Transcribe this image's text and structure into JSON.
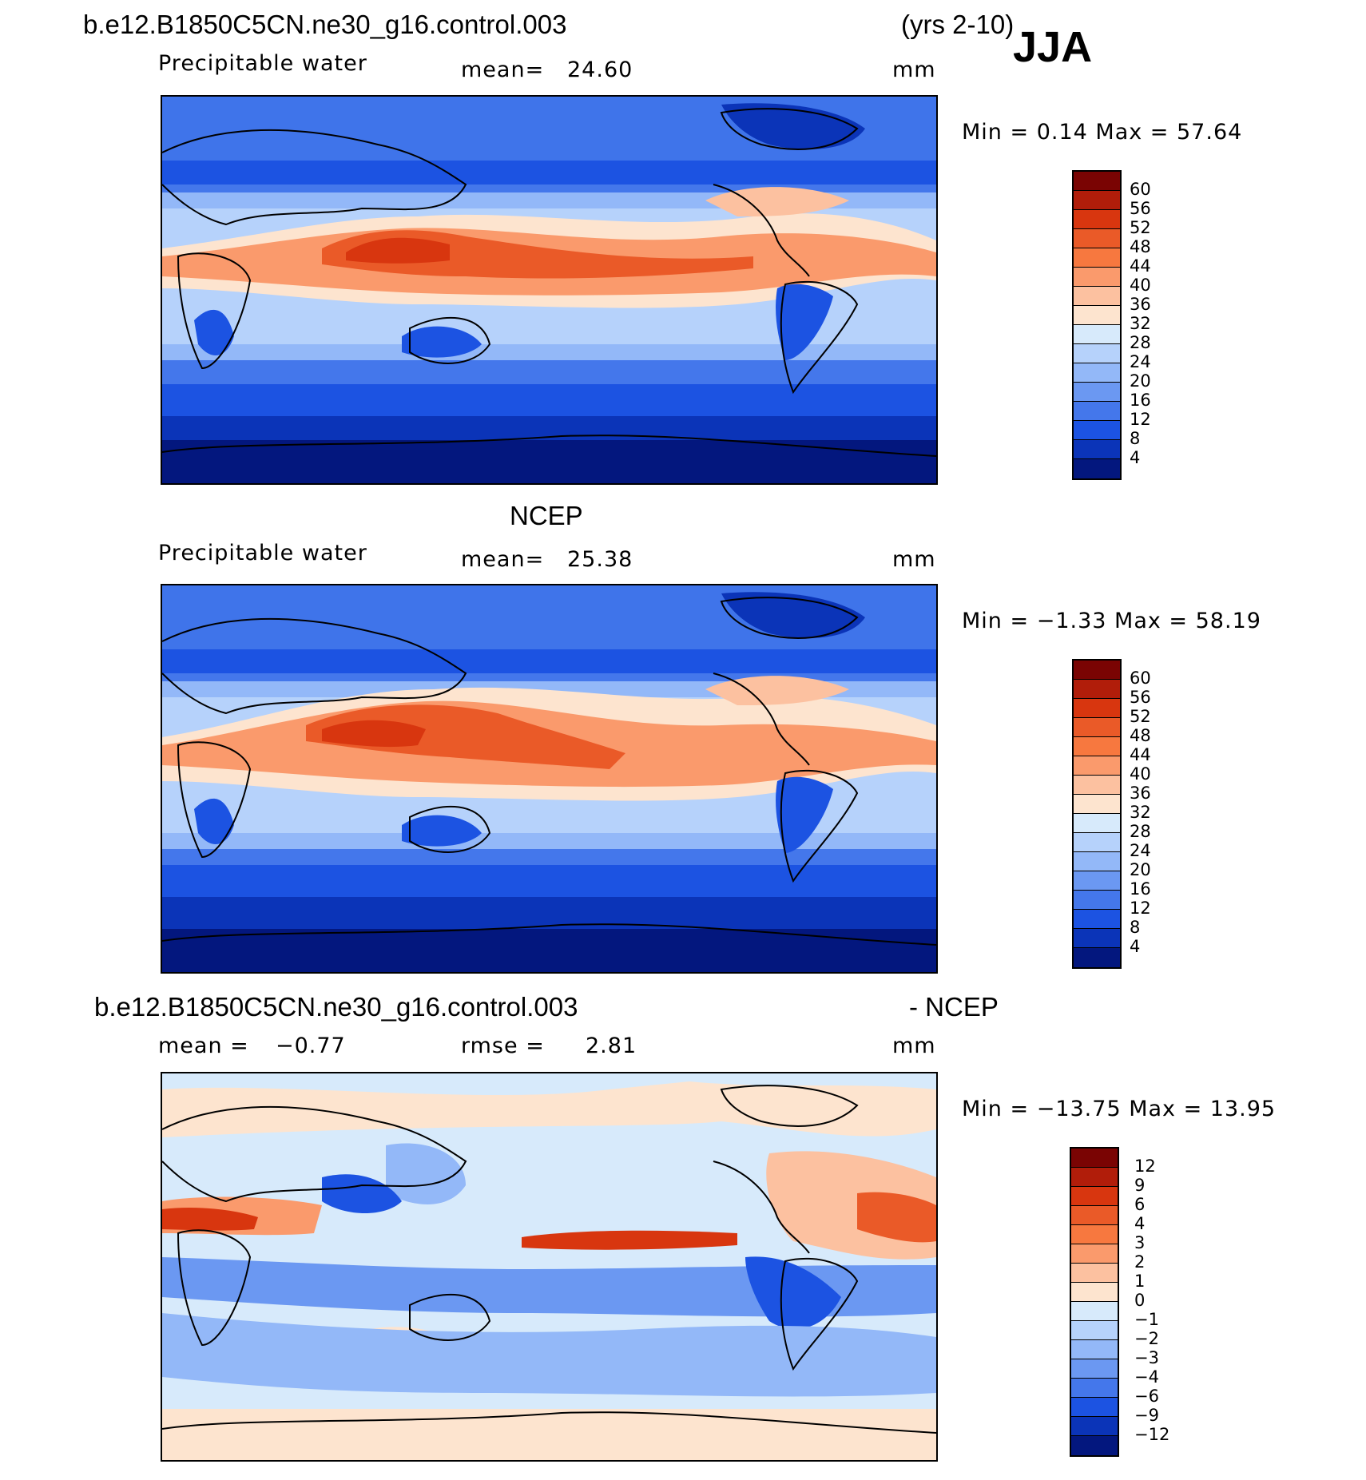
{
  "header": {
    "case_name": "b.e12.B1850C5CN.ne30_g16.control.003",
    "years": "(yrs 2-10)",
    "season": "JJA"
  },
  "panels": [
    {
      "title": "",
      "variable": "Precipitable water",
      "stat_label": "mean=",
      "stat_value": "24.60",
      "unit": "mm",
      "minmax": "Min =    0.14 Max =   57.64",
      "colorbar_levels": [
        "60",
        "56",
        "52",
        "48",
        "44",
        "40",
        "36",
        "32",
        "28",
        "24",
        "20",
        "16",
        "12",
        "8",
        "4"
      ]
    },
    {
      "title": "NCEP",
      "variable": "Precipitable water",
      "stat_label": "mean=",
      "stat_value": "25.38",
      "unit": "mm",
      "minmax": "Min =  −1.33 Max =   58.19",
      "colorbar_levels": [
        "60",
        "56",
        "52",
        "48",
        "44",
        "40",
        "36",
        "32",
        "28",
        "24",
        "20",
        "16",
        "12",
        "8",
        "4"
      ]
    },
    {
      "title_left": "b.e12.B1850C5CN.ne30_g16.control.003",
      "title_right": "- NCEP",
      "mean_label": "mean =",
      "mean_value": "−0.77",
      "rmse_label": "rmse =",
      "rmse_value": "2.81",
      "unit": "mm",
      "minmax": "Min = −13.75 Max =   13.95",
      "colorbar_levels": [
        "12",
        "9",
        "6",
        "4",
        "3",
        "2",
        "1",
        "0",
        "−1",
        "−2",
        "−3",
        "−4",
        "−6",
        "−9",
        "−12"
      ]
    }
  ],
  "colors": {
    "diverging_16": [
      "#7a0403",
      "#b11d0a",
      "#d8360f",
      "#ea5a28",
      "#f7783f",
      "#fa9a6c",
      "#fcc1a0",
      "#fde4cf",
      "#d7eafb",
      "#b6d2fb",
      "#93b8f8",
      "#6b98f2",
      "#4477eb",
      "#1c53e2",
      "#0b34b8",
      "#03177e"
    ]
  }
}
